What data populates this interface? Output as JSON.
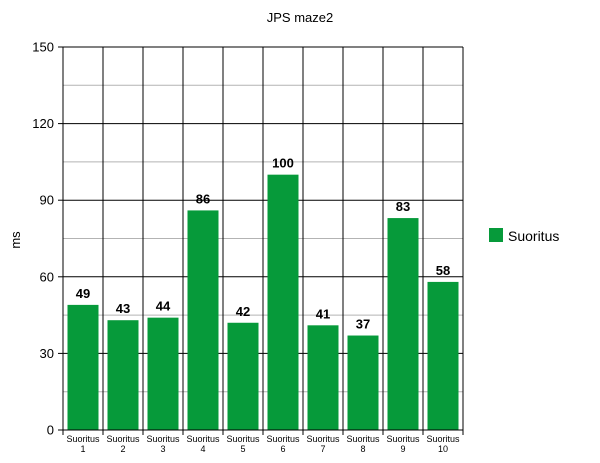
{
  "chart_data": {
    "type": "bar",
    "title": "JPS maze2",
    "xlabel": "",
    "ylabel": "ms",
    "ylim": [
      0,
      150
    ],
    "yticks": [
      0,
      30,
      60,
      90,
      120,
      150
    ],
    "minor_step": 15,
    "grid": true,
    "legend_position": "right",
    "categories": [
      [
        "Suoritus",
        "1"
      ],
      [
        "Suoritus",
        "2"
      ],
      [
        "Suoritus",
        "3"
      ],
      [
        "Suoritus",
        "4"
      ],
      [
        "Suoritus",
        "5"
      ],
      [
        "Suoritus",
        "6"
      ],
      [
        "Suoritus",
        "7"
      ],
      [
        "Suoritus",
        "8"
      ],
      [
        "Suoritus",
        "9"
      ],
      [
        "Suoritus",
        "10"
      ]
    ],
    "series": [
      {
        "name": "Suoritus",
        "color": "#069a3a",
        "values": [
          49,
          43,
          44,
          86,
          42,
          100,
          41,
          37,
          83,
          58
        ]
      }
    ]
  }
}
